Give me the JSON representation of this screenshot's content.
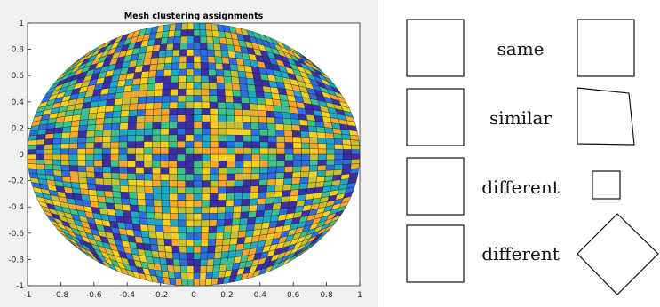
{
  "plot": {
    "title": "Mesh clustering assignments",
    "x_ticks": [
      "-1",
      "-0.8",
      "-0.6",
      "-0.4",
      "-0.2",
      "0",
      "0.2",
      "0.4",
      "0.6",
      "0.8",
      "1"
    ],
    "y_ticks": [
      "1",
      "0.8",
      "0.6",
      "0.4",
      "0.2",
      "0",
      "-0.2",
      "-0.4",
      "-0.6",
      "-0.8",
      "-1"
    ],
    "colormap": [
      "#3b2ea6",
      "#2b6ee0",
      "#1ea8c4",
      "#3ec08a",
      "#c8c030",
      "#f5d020",
      "#f7a72b"
    ],
    "grid_cells": 40
  },
  "comparisons": [
    {
      "label": "same",
      "right_shape": "square"
    },
    {
      "label": "similar",
      "right_shape": "distorted-quadrilateral"
    },
    {
      "label": "different",
      "right_shape": "small-square"
    },
    {
      "label": "different",
      "right_shape": "rotated-square"
    }
  ]
}
